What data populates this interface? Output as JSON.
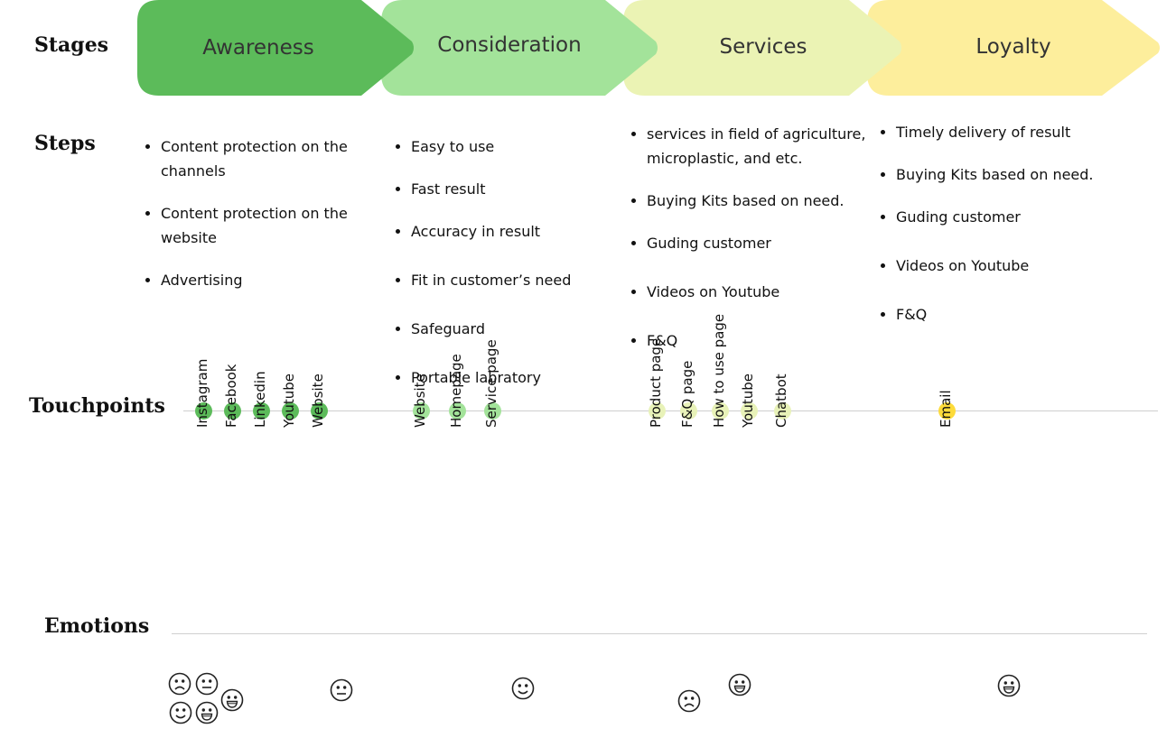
{
  "section_titles": {
    "stages": "Stages",
    "steps": "Steps",
    "touchpoints": "Touchpoints",
    "emotions": "Emotions"
  },
  "stages": [
    {
      "label": "Awareness",
      "color": "#5cbb5a",
      "steps": [
        "Content protection on the channels",
        "Content protection on the website",
        "Advertising"
      ]
    },
    {
      "label": "Consideration",
      "color": "#a3e39a",
      "steps": [
        "Easy to use",
        "Fast result",
        "Accuracy in result",
        "Fit in customer’s need",
        "Safeguard",
        "Portable labratory"
      ]
    },
    {
      "label": "Services",
      "color": "#ebf3b4",
      "steps": [
        "services in field of agriculture, microplastic, and etc.",
        "Buying Kits based on need.",
        "Guding customer",
        "Videos on Youtube",
        "F&Q"
      ]
    },
    {
      "label": "Loyalty",
      "color": "#fdee9c",
      "steps": [
        "Timely delivery of result",
        "Buying Kits based on need.",
        "Guding customer",
        "Videos on Youtube",
        "F&Q"
      ]
    }
  ],
  "touchpoints": [
    {
      "label": "Instagram",
      "color": "#5cbb5a"
    },
    {
      "label": "Facebook",
      "color": "#5cbb5a"
    },
    {
      "label": "Linkedin",
      "color": "#5cbb5a"
    },
    {
      "label": "Youtube",
      "color": "#5cbb5a"
    },
    {
      "label": "Website",
      "color": "#5cbb5a"
    },
    {
      "label": "Website",
      "color": "#a3e39a"
    },
    {
      "label": "Homepage",
      "color": "#a3e39a"
    },
    {
      "label": "Service page",
      "color": "#a3e39a"
    },
    {
      "label": "Product page",
      "color": "#e8f2b8"
    },
    {
      "label": "F&Q page",
      "color": "#e8f2b8"
    },
    {
      "label": "How to use page",
      "color": "#e8f2b8"
    },
    {
      "label": "Youtube",
      "color": "#e8f2b8"
    },
    {
      "label": "Chatbot",
      "color": "#e8f2b8"
    },
    {
      "label": "Email",
      "color": "#fddb3a"
    }
  ],
  "emotions": [
    {
      "icon": "sad-face-icon"
    },
    {
      "icon": "neutral-face-icon"
    },
    {
      "icon": "grin-face-icon"
    },
    {
      "icon": "smile-face-icon"
    },
    {
      "icon": "grin-face-icon"
    },
    {
      "icon": "neutral-face-icon"
    },
    {
      "icon": "smile-face-icon"
    },
    {
      "icon": "sad-face-icon"
    },
    {
      "icon": "grin-face-icon"
    },
    {
      "icon": "grin-face-icon"
    }
  ]
}
